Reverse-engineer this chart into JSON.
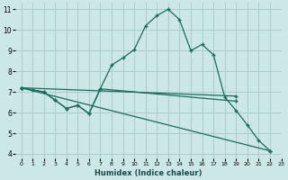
{
  "xlabel": "Humidex (Indice chaleur)",
  "bg_color": "#cce8e6",
  "grid_color": "#aacccc",
  "line_color": "#1a6b5a",
  "xlim": [
    -0.5,
    23
  ],
  "ylim": [
    3.8,
    11.3
  ],
  "xticks": [
    0,
    1,
    2,
    3,
    4,
    5,
    6,
    7,
    8,
    9,
    10,
    11,
    12,
    13,
    14,
    15,
    16,
    17,
    18,
    19,
    20,
    21,
    22,
    23
  ],
  "yticks": [
    4,
    5,
    6,
    7,
    8,
    9,
    10,
    11
  ],
  "curve1_x": [
    0,
    1,
    2,
    3,
    4,
    5,
    6,
    7,
    8,
    9,
    10,
    11,
    12,
    13,
    14,
    15,
    16,
    17,
    18,
    19,
    20,
    21,
    22
  ],
  "curve1_y": [
    7.2,
    7.1,
    7.0,
    6.6,
    6.2,
    6.35,
    5.95,
    7.15,
    8.3,
    8.65,
    9.05,
    10.2,
    10.7,
    11.0,
    10.5,
    9.0,
    9.3,
    8.8,
    6.75,
    6.1,
    5.4,
    4.65,
    4.15
  ],
  "curve2_x": [
    0,
    19
  ],
  "curve2_y": [
    7.2,
    6.8
  ],
  "curve3_x": [
    0,
    22
  ],
  "curve3_y": [
    7.2,
    4.15
  ],
  "curve4_x": [
    0,
    2,
    3,
    4,
    5,
    6,
    7,
    19
  ],
  "curve4_y": [
    7.2,
    7.0,
    6.6,
    6.2,
    6.35,
    5.95,
    7.15,
    6.55
  ]
}
